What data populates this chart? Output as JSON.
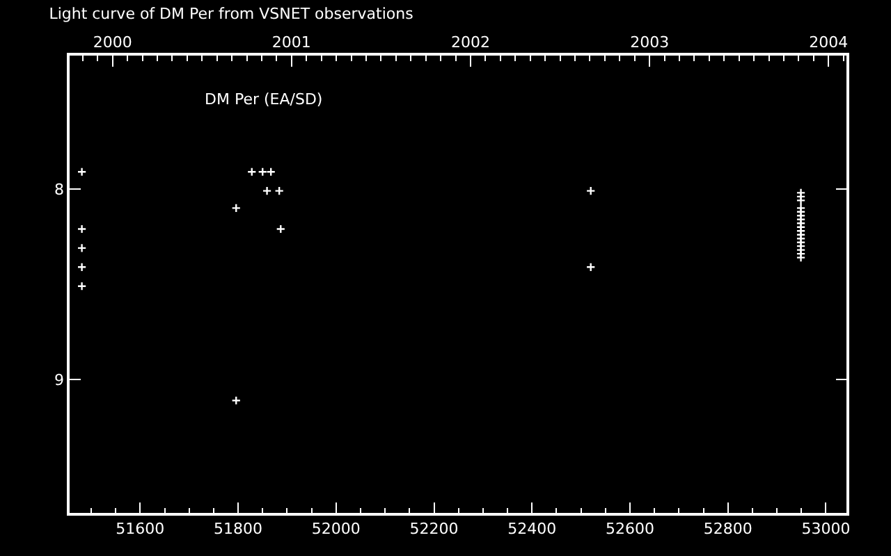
{
  "chart_data": {
    "type": "scatter",
    "title": "Light curve of DM Per from VSNET observations",
    "annotations": [
      "DM Per (EA/SD)"
    ],
    "series": [
      {
        "color": "#ffffff",
        "x": [
          51481,
          51481,
          51481,
          51481,
          51481,
          51796,
          51796,
          51828,
          51850,
          51867,
          51859,
          51884,
          51887,
          52520,
          52520,
          52949,
          52949,
          52949,
          52949,
          52949,
          52949,
          52949,
          52949,
          52949,
          52949,
          52949,
          52949,
          52949,
          52949,
          52949,
          52949,
          52949
        ],
        "values": [
          7.91,
          8.21,
          8.31,
          8.41,
          8.51,
          8.1,
          9.11,
          7.91,
          7.91,
          7.91,
          8.01,
          8.01,
          8.21,
          8.01,
          8.41,
          8.02,
          8.04,
          8.06,
          8.1,
          8.12,
          8.14,
          8.16,
          8.18,
          8.2,
          8.22,
          8.24,
          8.26,
          8.28,
          8.3,
          8.32,
          8.34,
          8.36
        ]
      }
    ],
    "marker": "cross",
    "xlim": [
      51456,
      53042
    ],
    "xticks": [
      51600,
      51800,
      52000,
      52200,
      52400,
      52600,
      52800,
      53000
    ],
    "x2lim": [
      1999.76,
      2004.1
    ],
    "x2ticks": [
      2000,
      2001,
      2002,
      2003,
      2004
    ],
    "ylim": [
      9.7,
      7.3
    ],
    "yticks": [
      8,
      9
    ],
    "grid": false
  }
}
